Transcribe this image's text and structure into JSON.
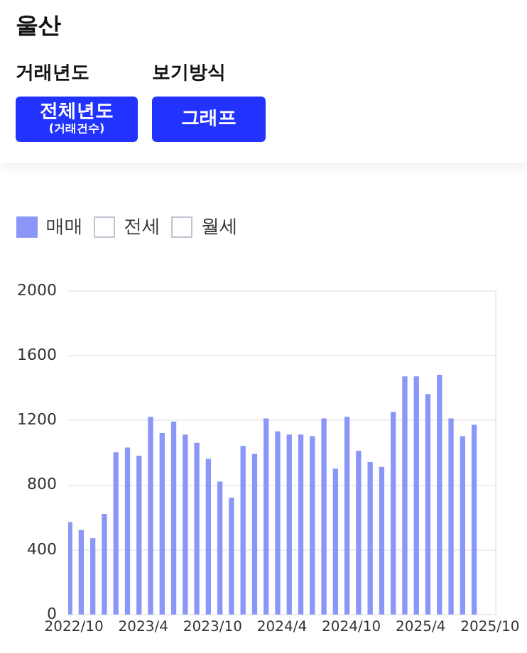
{
  "chart_data": {
    "type": "bar",
    "title": "울산",
    "annotations": [
      "거래년도",
      "전체년도 (거래건수)",
      "보기방식",
      "그래프"
    ],
    "categories": [
      "2022/10",
      null,
      null,
      null,
      null,
      null,
      "2023/4",
      null,
      null,
      null,
      null,
      null,
      "2023/10",
      null,
      null,
      null,
      null,
      null,
      "2024/4",
      null,
      null,
      null,
      null,
      null,
      "2024/10",
      null,
      null,
      null,
      null,
      null,
      "2025/4",
      null,
      null,
      null,
      null,
      null,
      "2025/10"
    ],
    "series": [
      {
        "name": "매매",
        "color": "#8a96f8",
        "values": [
          570,
          520,
          470,
          620,
          1000,
          1030,
          980,
          1220,
          1120,
          1190,
          1110,
          1060,
          960,
          820,
          720,
          1040,
          990,
          1210,
          1130,
          1110,
          1110,
          1100,
          1210,
          900,
          1220,
          1010,
          940,
          910,
          1250,
          1470,
          1470,
          1360,
          1480,
          1210,
          1100,
          1170,
          null
        ]
      },
      {
        "name": "전세",
        "color": "#c0c4d0",
        "values": [
          null,
          null,
          null,
          null,
          null,
          null,
          null,
          null,
          null,
          null,
          null,
          null,
          null,
          null,
          null,
          null,
          null,
          null,
          null,
          null,
          null,
          null,
          null,
          null,
          null,
          null,
          null,
          null,
          null,
          null,
          null,
          null,
          null,
          null,
          null,
          null,
          null
        ]
      },
      {
        "name": "월세",
        "color": "#c0c4d0",
        "values": [
          null,
          null,
          null,
          null,
          null,
          null,
          null,
          null,
          null,
          null,
          null,
          null,
          null,
          null,
          null,
          null,
          null,
          null,
          null,
          null,
          null,
          null,
          null,
          null,
          null,
          null,
          null,
          null,
          null,
          null,
          null,
          null,
          null,
          null,
          null,
          null,
          null
        ]
      }
    ],
    "ylim": [
      0,
      2000
    ],
    "yticks": [
      0,
      400,
      800,
      1200,
      1600,
      2000
    ],
    "grid": "y",
    "legend": "top left"
  }
}
